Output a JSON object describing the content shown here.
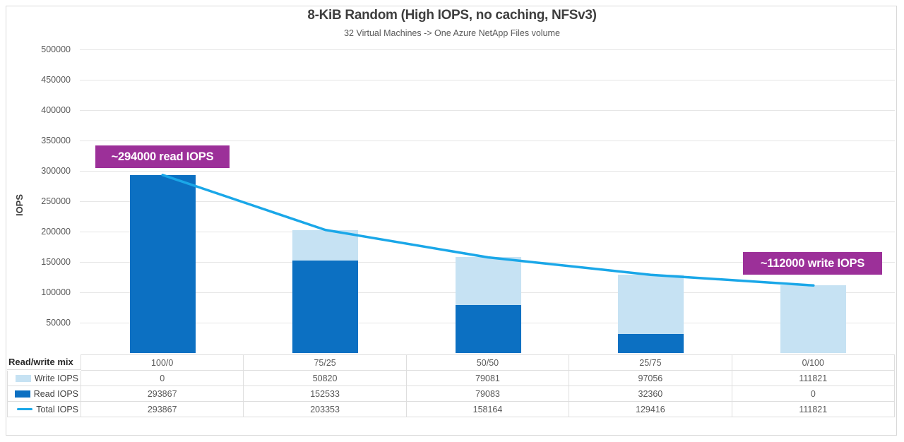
{
  "chart": {
    "title": "8-KiB Random (High IOPS, no caching, NFSv3)",
    "subtitle": "32 Virtual Machines -> One Azure NetApp Files volume",
    "ylabel": "IOPS"
  },
  "chart_data": {
    "type": "bar",
    "subtype": "stacked bars with line overlay",
    "title": "8-KiB Random (High IOPS, no caching, NFSv3)",
    "subtitle": "32 Virtual Machines -> One Azure NetApp Files volume",
    "xlabel": "Read/write mix",
    "ylabel": "IOPS",
    "categories": [
      "100/0",
      "75/25",
      "50/50",
      "25/75",
      "0/100"
    ],
    "series": [
      {
        "name": "Write IOPS",
        "type": "bar",
        "stack": true,
        "color": "#C6E2F3",
        "values": [
          0,
          50820,
          79081,
          97056,
          111821
        ]
      },
      {
        "name": "Read IOPS",
        "type": "bar",
        "stack": true,
        "color": "#0C70C2",
        "values": [
          293867,
          152533,
          79083,
          32360,
          0
        ]
      },
      {
        "name": "Total IOPS",
        "type": "line",
        "color": "#1AA7E8",
        "values": [
          293867,
          203353,
          158164,
          129416,
          111821
        ]
      }
    ],
    "ylim": [
      0,
      500000
    ],
    "yticks": [
      50000,
      100000,
      150000,
      200000,
      250000,
      300000,
      350000,
      400000,
      450000,
      500000
    ],
    "grid": "horizontal",
    "gridline_color": "#E6E6E6",
    "legend_position": "table-left"
  },
  "annotations": [
    {
      "text": "~294000 read IOPS",
      "bg": "#9C3099",
      "text_color": "#FFFFFF"
    },
    {
      "text": "~112000 write IOPS",
      "bg": "#9C3099",
      "text_color": "#FFFFFF"
    }
  ],
  "table": {
    "row_header": "Read/write mix"
  }
}
